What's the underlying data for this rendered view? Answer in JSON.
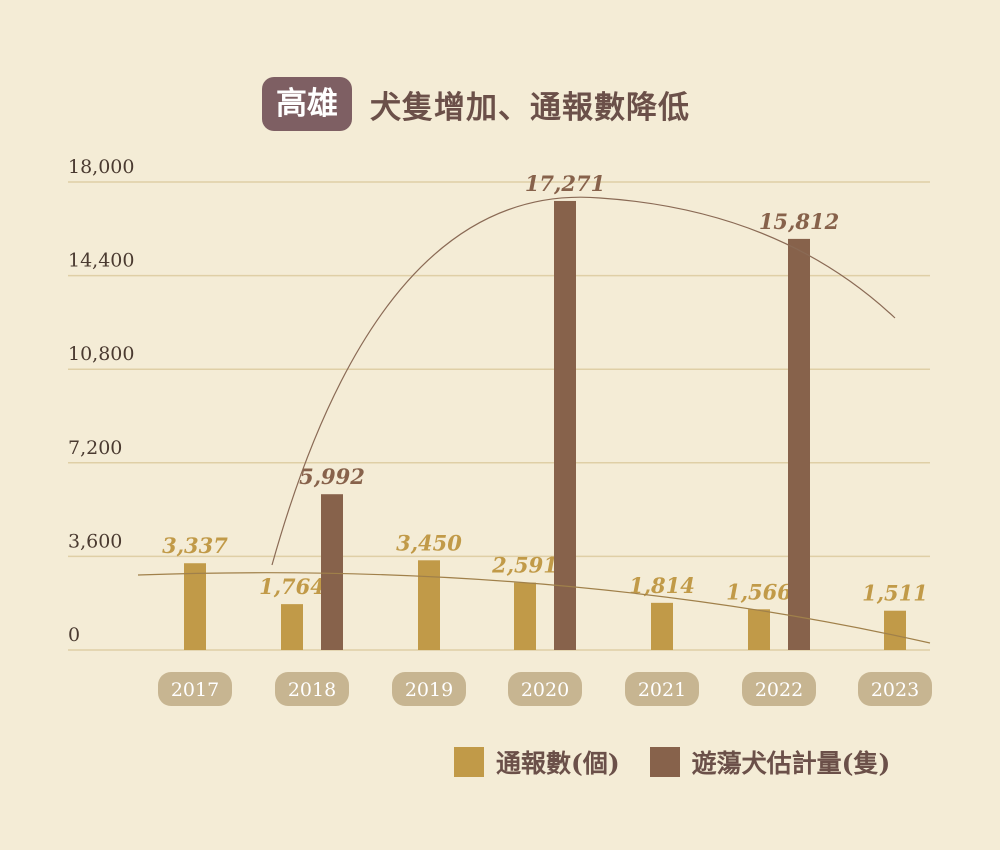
{
  "badge": "高雄",
  "headline": "犬隻增加、通報數降低",
  "colors": {
    "reports": "#c19a48",
    "dogs": "#87624b",
    "grid": "#dfcfa6",
    "axis_text": "#4a3a30",
    "year_pill": "#c7b591",
    "background": "#f4ecd6"
  },
  "legend": {
    "reports_label": "通報數(個)",
    "dogs_label": "遊蕩犬估計量(隻)"
  },
  "chart_data": {
    "type": "bar",
    "categories": [
      "2017",
      "2018",
      "2019",
      "2020",
      "2021",
      "2022",
      "2023"
    ],
    "series": [
      {
        "name": "通報數(個)",
        "values": [
          3337,
          1764,
          3450,
          2591,
          1814,
          1566,
          1511
        ],
        "labels": [
          "3,337",
          "1,764",
          "3,450",
          "2,591",
          "1,814",
          "1,566",
          "1,511"
        ]
      },
      {
        "name": "遊蕩犬估計量(隻)",
        "values": [
          null,
          5992,
          null,
          17271,
          null,
          15812,
          null
        ],
        "labels": [
          "",
          "5,992",
          "",
          "17,271",
          "",
          "15,812",
          ""
        ]
      }
    ],
    "yticks": [
      0,
      3600,
      7200,
      10800,
      14400,
      18000
    ],
    "ytick_labels": [
      "0",
      "3,600",
      "7,200",
      "10,800",
      "14,400",
      "18,000"
    ],
    "ylim": [
      0,
      18000
    ],
    "trendlines": true,
    "legend_position": "bottom-right"
  }
}
